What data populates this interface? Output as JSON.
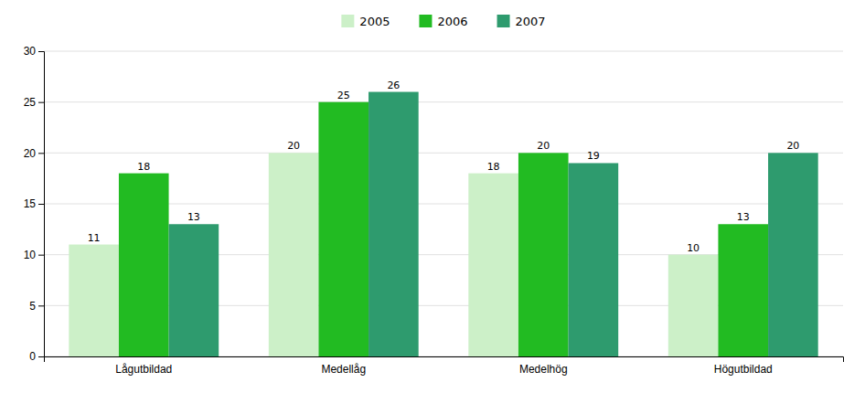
{
  "chart_data": {
    "type": "bar",
    "categories": [
      "Lågutbildad",
      "Medellåg",
      "Medelhög",
      "Högutbildad"
    ],
    "series": [
      {
        "name": "2005",
        "color": "#ccf0c8",
        "values": [
          11,
          20,
          18,
          10
        ]
      },
      {
        "name": "2006",
        "color": "#22bb22",
        "values": [
          18,
          25,
          20,
          13
        ]
      },
      {
        "name": "2007",
        "color": "#2e9b6e",
        "values": [
          13,
          26,
          19,
          20
        ]
      }
    ],
    "ylim": [
      0,
      30
    ],
    "yticks": [
      0,
      5,
      10,
      15,
      20,
      25,
      30
    ],
    "grid": true,
    "legend": "top",
    "data_labels": true
  }
}
